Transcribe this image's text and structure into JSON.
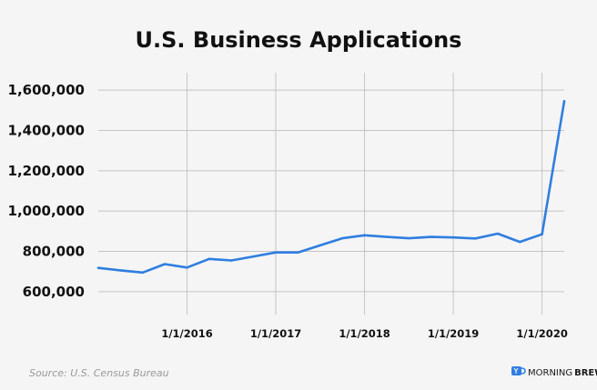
{
  "chart_data": {
    "type": "line",
    "title": "U.S. Business Applications",
    "xlabel": "",
    "ylabel": "",
    "ylim": [
      550000,
      1650000
    ],
    "grid": true,
    "yticks": [
      600000,
      800000,
      1000000,
      1200000,
      1400000,
      1600000
    ],
    "ytick_labels": [
      "600,000",
      "800,000",
      "1,000,000",
      "1,200,000",
      "1,400,000",
      "1,600,000"
    ],
    "xtick_labels": [
      "1/1/2016",
      "1/1/2017",
      "1/1/2018",
      "1/1/2019",
      "1/1/2020"
    ],
    "xtick_positions": [
      4,
      8,
      12,
      16,
      20
    ],
    "x_range": [
      0,
      21
    ],
    "series": [
      {
        "color": "#2f7ee0",
        "values": [
          718000,
          706000,
          695000,
          737000,
          720000,
          763000,
          755000,
          775000,
          795000,
          795000,
          830000,
          865000,
          880000,
          872000,
          865000,
          872000,
          869000,
          864000,
          888000,
          847000,
          885000,
          1545000
        ]
      }
    ]
  },
  "footer": {
    "source": "Source: U.S. Census Bureau",
    "brand_part1": "MORNING",
    "brand_part2": "BREW",
    "brand_color": "#2f7ee0"
  }
}
